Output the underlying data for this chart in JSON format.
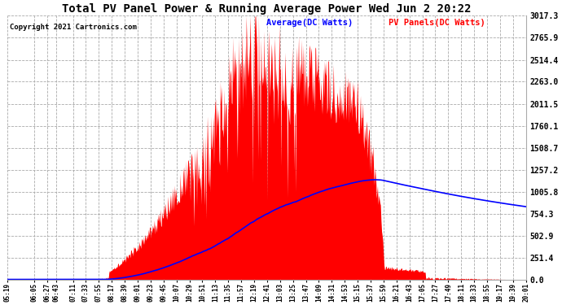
{
  "title": "Total PV Panel Power & Running Average Power Wed Jun 2 20:22",
  "copyright": "Copyright 2021 Cartronics.com",
  "legend_avg": "Average(DC Watts)",
  "legend_pv": "PV Panels(DC Watts)",
  "yticks": [
    0.0,
    251.4,
    502.9,
    754.3,
    1005.8,
    1257.2,
    1508.7,
    1760.1,
    2011.5,
    2263.0,
    2514.4,
    2765.9,
    3017.3
  ],
  "ymax": 3017.3,
  "ymin": 0.0,
  "bg_color": "#ffffff",
  "plot_bg_color": "#ffffff",
  "grid_color": "#aaaaaa",
  "pv_color": "#ff0000",
  "avg_color": "#0000ff",
  "title_color": "#000000",
  "copyright_color": "#000000",
  "legend_avg_color": "#0000ff",
  "legend_pv_color": "#ff0000",
  "start_hour": 5.3167,
  "end_hour": 20.0167,
  "tick_times": [
    "05:19",
    "06:05",
    "06:27",
    "06:43",
    "07:11",
    "07:33",
    "07:55",
    "08:17",
    "08:39",
    "09:01",
    "09:23",
    "09:45",
    "10:07",
    "10:29",
    "10:51",
    "11:13",
    "11:35",
    "11:57",
    "12:19",
    "12:41",
    "13:03",
    "13:25",
    "13:47",
    "14:09",
    "14:31",
    "14:53",
    "15:15",
    "15:37",
    "15:59",
    "16:21",
    "16:43",
    "17:05",
    "17:27",
    "17:49",
    "18:11",
    "18:33",
    "18:55",
    "19:17",
    "19:39",
    "20:01"
  ]
}
